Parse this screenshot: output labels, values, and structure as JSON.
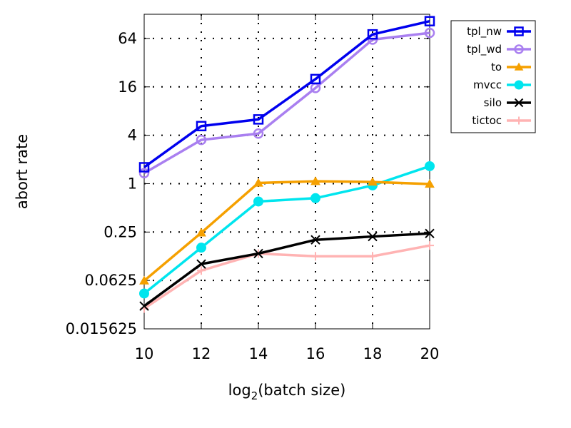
{
  "chart_data": {
    "type": "line",
    "title": "",
    "xlabel": "log2(batch size)",
    "xlabel_parts": {
      "base": "log",
      "sub": "2",
      "rest": "(batch size)"
    },
    "ylabel": "abort rate",
    "xlim": [
      10,
      20
    ],
    "ylim": [
      0.015625,
      128
    ],
    "yscale": "log2",
    "xticks": [
      10,
      12,
      14,
      16,
      18,
      20
    ],
    "xtick_labels": [
      "10",
      "12",
      "14",
      "16",
      "18",
      "20"
    ],
    "yticks": [
      0.015625,
      0.0625,
      0.25,
      1,
      4,
      16,
      64
    ],
    "ytick_labels": [
      "0.015625",
      "0.0625",
      "0.25",
      "1",
      "4",
      "16",
      "64"
    ],
    "grid": true,
    "legend_position": "top-right outside",
    "x": [
      10,
      12,
      14,
      16,
      18,
      20
    ],
    "series": [
      {
        "name": "tpl_nw",
        "color": "#0000ee",
        "marker": "open-square",
        "values": [
          1.6,
          5.2,
          6.3,
          20,
          72,
          105
        ]
      },
      {
        "name": "tpl_wd",
        "color": "#a97ff0",
        "marker": "open-circle",
        "values": [
          1.35,
          3.5,
          4.2,
          15.5,
          62,
          75
        ]
      },
      {
        "name": "to",
        "color": "#f5a000",
        "marker": "filled-triangle",
        "values": [
          0.062,
          0.245,
          1.02,
          1.07,
          1.05,
          0.99
        ]
      },
      {
        "name": "mvcc",
        "color": "#00e5ee",
        "marker": "filled-circle",
        "values": [
          0.043,
          0.16,
          0.6,
          0.66,
          0.95,
          1.65
        ]
      },
      {
        "name": "silo",
        "color": "#000000",
        "marker": "x",
        "values": [
          0.03,
          0.1,
          0.135,
          0.2,
          0.22,
          0.24
        ]
      },
      {
        "name": "tictoc",
        "color": "#ffb3b3",
        "marker": "plus",
        "values": [
          0.028,
          0.083,
          0.135,
          0.125,
          0.125,
          0.17
        ]
      }
    ]
  }
}
